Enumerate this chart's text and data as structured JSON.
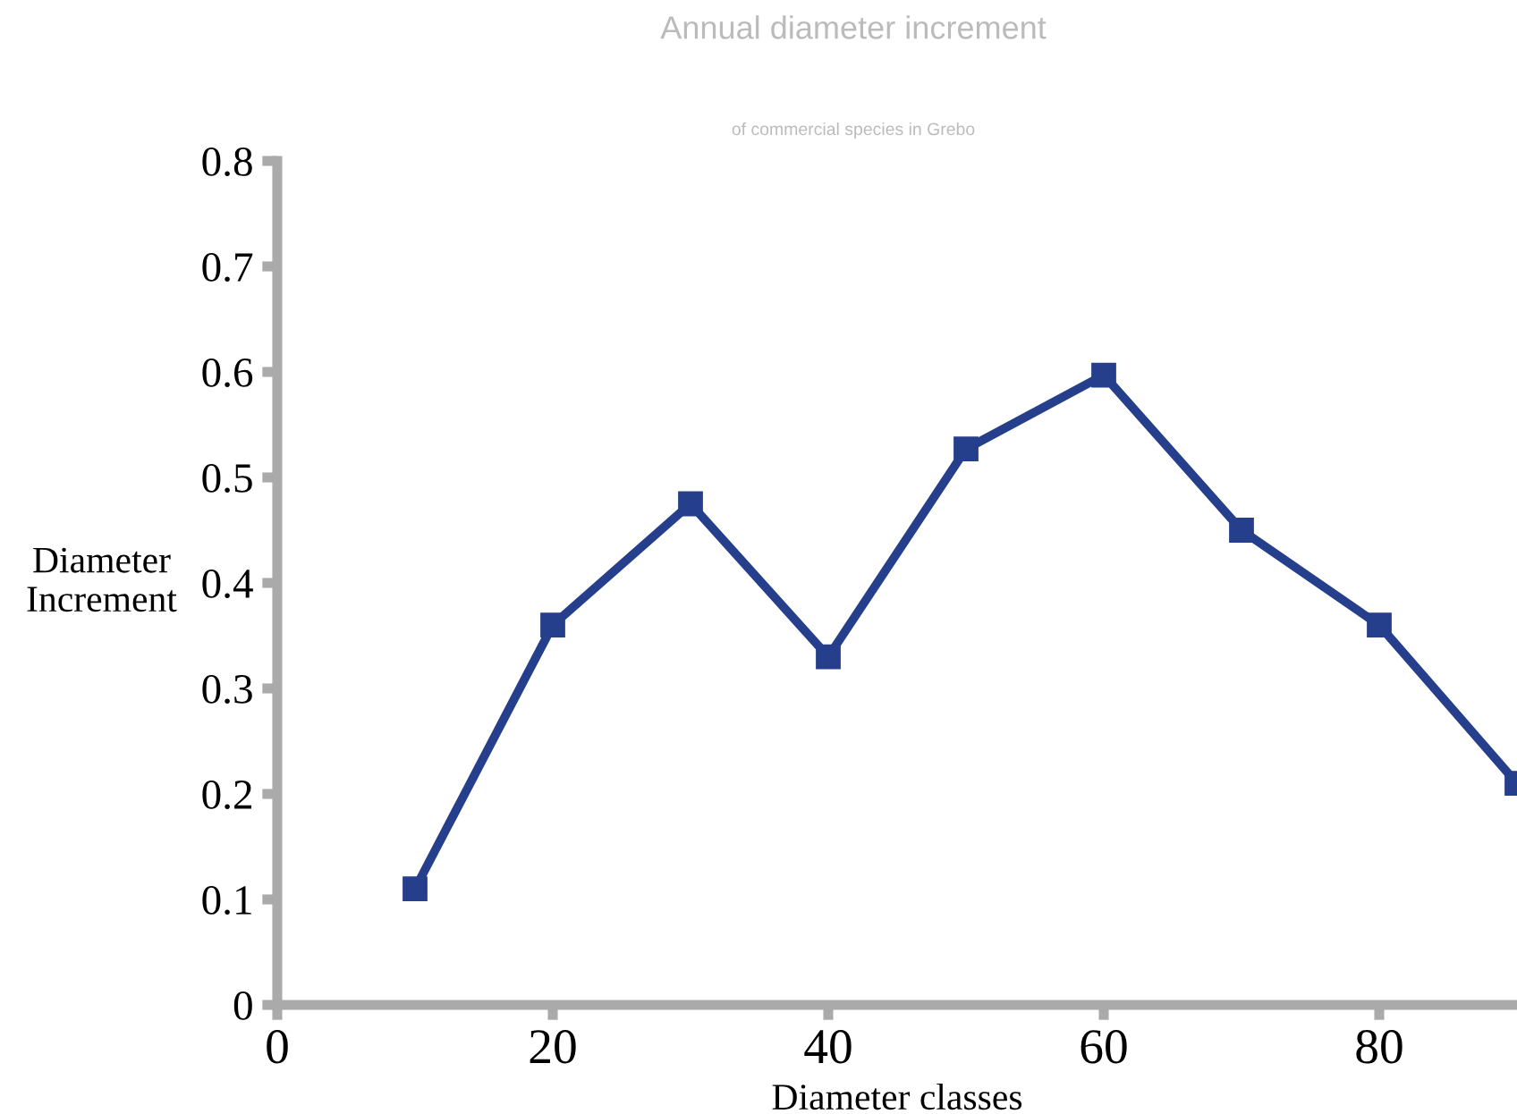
{
  "chart_data": {
    "type": "line",
    "title": "Annual diameter increment",
    "subtitle": "of commercial species in Grebo",
    "xlabel": "Diameter classes",
    "ylabel": "Diameter\nIncrement",
    "x": [
      10,
      20,
      30,
      40,
      50,
      60,
      70,
      80,
      90
    ],
    "series": [
      {
        "color": "#263f8c",
        "values": [
          0.11,
          0.36,
          0.475,
          0.33,
          0.527,
          0.597,
          0.45,
          0.36,
          0.21
        ]
      }
    ],
    "xlim": [
      0,
      90
    ],
    "ylim": [
      0,
      0.8
    ],
    "xticks": [
      0,
      20,
      40,
      60,
      80
    ],
    "yticks": [
      0,
      0.1,
      0.2,
      0.3,
      0.4,
      0.5,
      0.6,
      0.7,
      0.8
    ],
    "marker": "square",
    "line_style": "solid",
    "grid": false
  }
}
